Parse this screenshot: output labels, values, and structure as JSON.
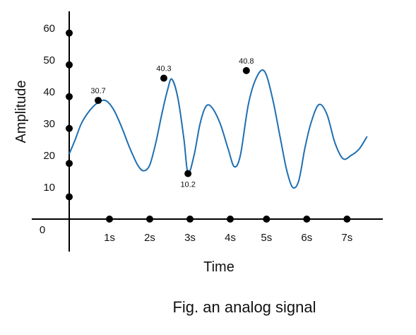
{
  "chart_data": {
    "type": "line",
    "title": "",
    "caption": "Fig. an analog signal",
    "xlabel": "Time",
    "ylabel": "Amplitude",
    "origin_label": "0",
    "xlim": [
      0,
      7.5
    ],
    "ylim": [
      0,
      67
    ],
    "x_ticks": [
      {
        "value": 1,
        "label": "1s"
      },
      {
        "value": 2,
        "label": "2s"
      },
      {
        "value": 3,
        "label": "3s"
      },
      {
        "value": 4,
        "label": "4s"
      },
      {
        "value": 5,
        "label": "5s"
      },
      {
        "value": 6,
        "label": "6s"
      },
      {
        "value": 7,
        "label": "7s"
      }
    ],
    "y_ticks": [
      {
        "value": 10,
        "label": "10"
      },
      {
        "value": 20,
        "label": "20"
      },
      {
        "value": 30,
        "label": "30"
      },
      {
        "value": 40,
        "label": "40"
      },
      {
        "value": 50,
        "label": "50"
      },
      {
        "value": 60,
        "label": "60"
      }
    ],
    "x_axis_markers": [
      1.0,
      2.0,
      3.0,
      4.0,
      4.9,
      5.9,
      6.9
    ],
    "y_axis_markers": [
      7,
      17.5,
      28.5,
      38.5,
      48.5,
      58.5
    ],
    "series": [
      {
        "color": "#1f6fb2",
        "x": [
          0,
          0.15,
          0.3,
          0.5,
          0.7,
          0.9,
          1.1,
          1.3,
          1.5,
          1.7,
          1.85,
          2.0,
          2.15,
          2.3,
          2.45,
          2.55,
          2.7,
          2.85,
          2.95,
          3.1,
          3.25,
          3.4,
          3.55,
          3.75,
          3.95,
          4.1,
          4.25,
          4.45,
          4.65,
          4.85,
          5.05,
          5.25,
          5.4,
          5.55,
          5.7,
          5.85,
          6.0,
          6.2,
          6.4,
          6.6,
          6.8,
          7.0,
          7.2,
          7.4
        ],
        "y": [
          20.5,
          25,
          30,
          34,
          36.5,
          37.3,
          34.5,
          29,
          22.5,
          17,
          15.2,
          17,
          24,
          33,
          41,
          44,
          38,
          25,
          14.5,
          20,
          30,
          35.5,
          35,
          30,
          22,
          16.5,
          20,
          36,
          44.5,
          46.5,
          38,
          25,
          15.5,
          10,
          12,
          22,
          30,
          36,
          33,
          24,
          19,
          20,
          22,
          26
        ]
      }
    ],
    "annotations": [
      {
        "x": 0.72,
        "y": 37.3,
        "label": "30.7",
        "position": "above"
      },
      {
        "x": 2.35,
        "y": 44.3,
        "label": "40.3",
        "position": "above"
      },
      {
        "x": 2.95,
        "y": 14.3,
        "label": "10.2",
        "position": "below"
      },
      {
        "x": 4.4,
        "y": 46.7,
        "label": "40.8",
        "position": "above"
      }
    ]
  }
}
